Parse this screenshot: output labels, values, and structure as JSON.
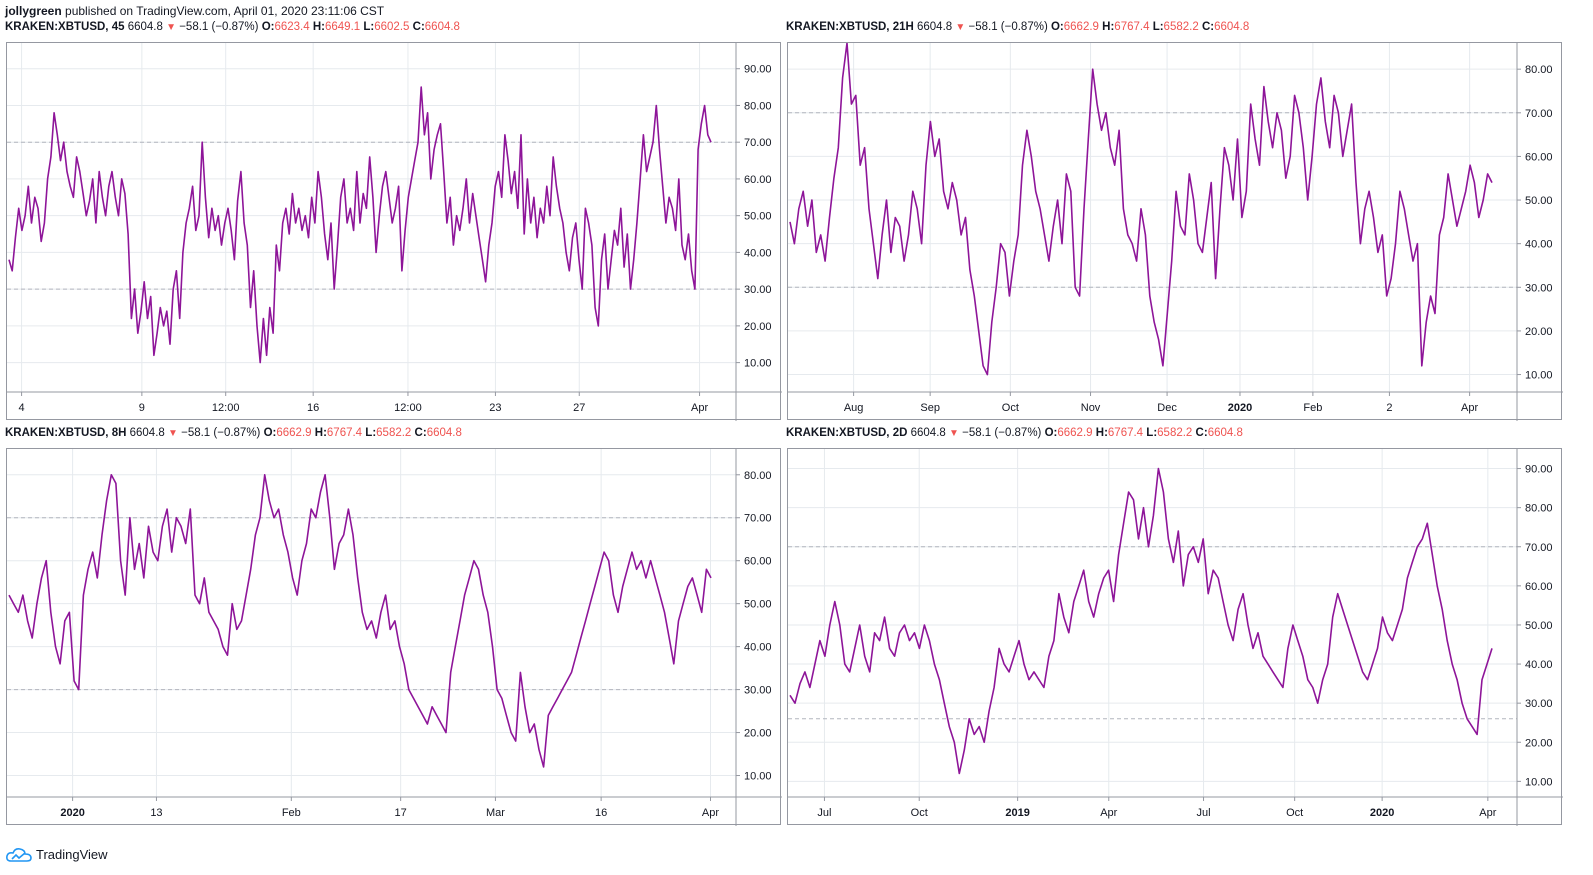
{
  "published": {
    "user": "jollygreen",
    "text": "published on TradingView.com, April 01, 2020 23:11:06 CST"
  },
  "footer": {
    "brand": "TradingView"
  },
  "colors": {
    "line": "#8e1599",
    "grid": "#e6eaee",
    "level": "#b2b5be",
    "red": "#ef5350"
  },
  "panels": [
    {
      "symbol": "KRAKEN:XBTUSD, 45",
      "last": "6604.8",
      "change": "−58.1 (−0.87%)",
      "o": "6623.4",
      "h": "6649.1",
      "l": "6602.5",
      "c": "6604.8"
    },
    {
      "symbol": "KRAKEN:XBTUSD, 21H",
      "last": "6604.8",
      "change": "−58.1 (−0.87%)",
      "o": "6662.9",
      "h": "6767.4",
      "l": "6582.2",
      "c": "6604.8"
    },
    {
      "symbol": "KRAKEN:XBTUSD, 8H",
      "last": "6604.8",
      "change": "−58.1 (−0.87%)",
      "o": "6662.9",
      "h": "6767.4",
      "l": "6582.2",
      "c": "6604.8"
    },
    {
      "symbol": "KRAKEN:XBTUSD, 2D",
      "last": "6604.8",
      "change": "−58.1 (−0.87%)",
      "o": "6662.9",
      "h": "6767.4",
      "l": "6582.2",
      "c": "6604.8"
    }
  ],
  "chart_data": [
    {
      "type": "line",
      "ylim": [
        2,
        97
      ],
      "yticks": [
        "10.00",
        "20.00",
        "30.00",
        "40.00",
        "50.00",
        "60.00",
        "70.00",
        "80.00",
        "90.00"
      ],
      "levels": [
        30,
        70
      ],
      "xticks": [
        "4",
        "9",
        "12:00",
        "16",
        "12:00",
        "23",
        "27",
        "Apr"
      ],
      "xtick_pos": [
        0.02,
        0.185,
        0.3,
        0.42,
        0.55,
        0.67,
        0.785,
        0.95
      ],
      "values": [
        38,
        35,
        44,
        52,
        46,
        50,
        58,
        48,
        55,
        52,
        43,
        48,
        60,
        66,
        78,
        72,
        65,
        70,
        62,
        58,
        55,
        66,
        62,
        56,
        50,
        54,
        60,
        48,
        62,
        55,
        50,
        58,
        62,
        55,
        50,
        60,
        56,
        45,
        22,
        30,
        18,
        24,
        32,
        22,
        28,
        12,
        18,
        25,
        20,
        24,
        15,
        30,
        35,
        22,
        40,
        48,
        52,
        58,
        46,
        50,
        70,
        55,
        44,
        52,
        46,
        50,
        42,
        48,
        52,
        46,
        38,
        54,
        62,
        48,
        42,
        25,
        35,
        20,
        10,
        22,
        12,
        25,
        18,
        42,
        35,
        48,
        52,
        45,
        56,
        48,
        52,
        46,
        50,
        44,
        55,
        48,
        62,
        55,
        45,
        38,
        48,
        30,
        42,
        55,
        60,
        48,
        52,
        46,
        62,
        48,
        56,
        52,
        66,
        55,
        40,
        50,
        58,
        62,
        55,
        48,
        52,
        58,
        35,
        46,
        55,
        60,
        65,
        70,
        85,
        72,
        78,
        60,
        68,
        72,
        75,
        62,
        48,
        55,
        42,
        50,
        46,
        52,
        60,
        48,
        56,
        50,
        44,
        38,
        32,
        42,
        48,
        58,
        62,
        55,
        72,
        65,
        56,
        62,
        52,
        72,
        45,
        60,
        48,
        55,
        44,
        52,
        48,
        58,
        50,
        66,
        58,
        52,
        48,
        40,
        35,
        44,
        48,
        38,
        30,
        52,
        48,
        42,
        25,
        20,
        38,
        45,
        30,
        38,
        46,
        42,
        52,
        36,
        45,
        30,
        38,
        48,
        60,
        72,
        62,
        66,
        70,
        80,
        68,
        58,
        48,
        55,
        52,
        46,
        60,
        42,
        38,
        45,
        35,
        30,
        68,
        75,
        80,
        72,
        70
      ]
    },
    {
      "type": "line",
      "ylim": [
        6,
        86
      ],
      "yticks": [
        "10.00",
        "20.00",
        "30.00",
        "40.00",
        "50.00",
        "60.00",
        "70.00",
        "80.00"
      ],
      "levels": [
        30,
        70
      ],
      "xticks": [
        "Aug",
        "Sep",
        "Oct",
        "Nov",
        "Dec",
        "2020",
        "Feb",
        "2",
        "Apr"
      ],
      "xtick_pos": [
        0.09,
        0.195,
        0.305,
        0.415,
        0.52,
        0.62,
        0.72,
        0.825,
        0.935
      ],
      "values": [
        45,
        40,
        48,
        52,
        44,
        50,
        38,
        42,
        36,
        46,
        55,
        62,
        78,
        86,
        72,
        74,
        58,
        62,
        48,
        40,
        32,
        42,
        50,
        38,
        46,
        44,
        36,
        42,
        52,
        48,
        40,
        58,
        68,
        60,
        64,
        52,
        48,
        54,
        50,
        42,
        46,
        34,
        28,
        20,
        12,
        10,
        22,
        30,
        40,
        38,
        28,
        36,
        42,
        58,
        66,
        60,
        52,
        48,
        42,
        36,
        44,
        50,
        40,
        56,
        52,
        30,
        28,
        48,
        64,
        80,
        72,
        66,
        70,
        62,
        58,
        66,
        48,
        42,
        40,
        36,
        48,
        42,
        28,
        22,
        18,
        12,
        24,
        36,
        52,
        44,
        42,
        56,
        50,
        40,
        38,
        46,
        54,
        32,
        48,
        62,
        58,
        50,
        64,
        46,
        52,
        72,
        64,
        58,
        76,
        68,
        62,
        70,
        66,
        55,
        60,
        74,
        70,
        62,
        50,
        60,
        72,
        78,
        68,
        62,
        74,
        70,
        60,
        66,
        72,
        54,
        40,
        48,
        52,
        46,
        38,
        42,
        28,
        32,
        40,
        52,
        48,
        42,
        36,
        40,
        12,
        22,
        28,
        24,
        42,
        46,
        56,
        50,
        44,
        48,
        52,
        58,
        54,
        46,
        50,
        56,
        54
      ]
    },
    {
      "type": "line",
      "ylim": [
        5,
        86
      ],
      "yticks": [
        "10.00",
        "20.00",
        "30.00",
        "40.00",
        "50.00",
        "60.00",
        "70.00",
        "80.00"
      ],
      "levels": [
        30,
        70
      ],
      "xticks": [
        "2020",
        "13",
        "Feb",
        "17",
        "Mar",
        "16",
        "Apr"
      ],
      "xtick_pos": [
        0.09,
        0.205,
        0.39,
        0.54,
        0.67,
        0.815,
        0.965
      ],
      "values": [
        52,
        50,
        48,
        52,
        46,
        42,
        50,
        56,
        60,
        48,
        40,
        36,
        46,
        48,
        32,
        30,
        52,
        58,
        62,
        56,
        66,
        74,
        80,
        78,
        60,
        52,
        70,
        58,
        64,
        56,
        68,
        62,
        60,
        68,
        72,
        62,
        70,
        68,
        64,
        72,
        52,
        50,
        56,
        48,
        46,
        44,
        40,
        38,
        50,
        44,
        46,
        52,
        58,
        66,
        70,
        80,
        74,
        70,
        72,
        66,
        62,
        56,
        52,
        60,
        64,
        72,
        70,
        76,
        80,
        70,
        58,
        64,
        66,
        72,
        66,
        56,
        48,
        44,
        46,
        42,
        48,
        52,
        44,
        46,
        40,
        36,
        30,
        28,
        26,
        24,
        22,
        26,
        24,
        22,
        20,
        34,
        40,
        46,
        52,
        56,
        60,
        58,
        52,
        48,
        40,
        30,
        28,
        24,
        20,
        18,
        34,
        26,
        20,
        22,
        16,
        12,
        24,
        26,
        28,
        30,
        32,
        34,
        38,
        42,
        46,
        50,
        54,
        58,
        62,
        60,
        52,
        48,
        54,
        58,
        62,
        58,
        60,
        56,
        60,
        56,
        52,
        48,
        42,
        36,
        46,
        50,
        54,
        56,
        52,
        48,
        58,
        56
      ]
    },
    {
      "type": "line",
      "ylim": [
        6,
        95
      ],
      "yticks": [
        "10.00",
        "20.00",
        "30.00",
        "40.00",
        "50.00",
        "60.00",
        "70.00",
        "80.00",
        "90.00"
      ],
      "levels": [
        26,
        70
      ],
      "xticks": [
        "Jul",
        "Oct",
        "2019",
        "Apr",
        "Jul",
        "Oct",
        "2020",
        "Apr"
      ],
      "xtick_pos": [
        0.05,
        0.18,
        0.315,
        0.44,
        0.57,
        0.695,
        0.815,
        0.96
      ],
      "values": [
        32,
        30,
        35,
        38,
        34,
        40,
        46,
        42,
        50,
        56,
        50,
        40,
        38,
        44,
        50,
        42,
        38,
        48,
        46,
        52,
        44,
        42,
        48,
        50,
        46,
        48,
        44,
        50,
        46,
        40,
        36,
        30,
        24,
        20,
        12,
        18,
        26,
        22,
        24,
        20,
        28,
        34,
        44,
        40,
        38,
        42,
        46,
        40,
        36,
        38,
        36,
        34,
        42,
        46,
        58,
        52,
        48,
        56,
        60,
        64,
        56,
        52,
        58,
        62,
        64,
        56,
        68,
        76,
        84,
        82,
        72,
        80,
        70,
        78,
        90,
        84,
        72,
        66,
        74,
        60,
        68,
        70,
        66,
        72,
        58,
        64,
        62,
        56,
        50,
        46,
        54,
        58,
        50,
        44,
        48,
        42,
        40,
        38,
        36,
        34,
        44,
        50,
        46,
        42,
        36,
        34,
        30,
        36,
        40,
        52,
        58,
        54,
        50,
        46,
        42,
        38,
        36,
        40,
        44,
        52,
        48,
        46,
        50,
        54,
        62,
        66,
        70,
        72,
        76,
        68,
        60,
        54,
        46,
        40,
        36,
        30,
        26,
        24,
        22,
        36,
        40,
        44
      ]
    }
  ]
}
